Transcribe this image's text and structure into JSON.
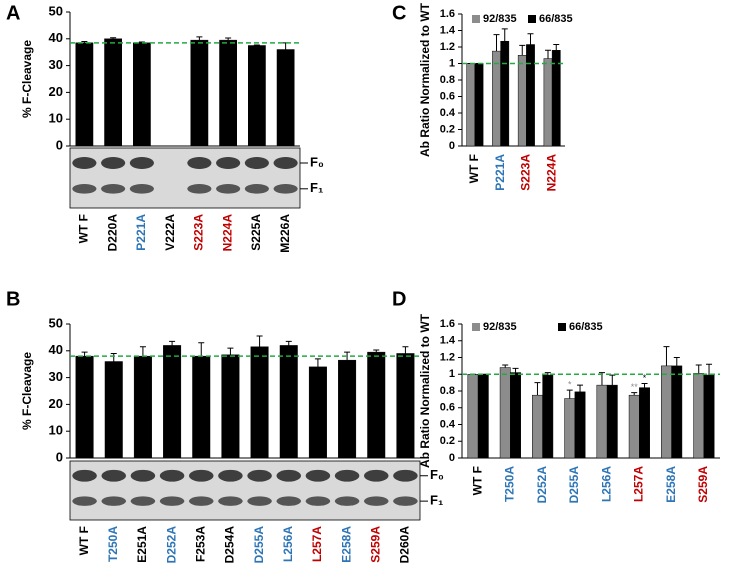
{
  "chart_data": [
    {
      "panel": "A",
      "type": "bar",
      "ylabel": "% F-Cleavage",
      "categories": [
        "WT F",
        "D220A",
        "P221A",
        "V222A",
        "S223A",
        "N224A",
        "S225A",
        "M226A"
      ],
      "category_colors": [
        "#000000",
        "#000000",
        "#2e75b6",
        "#000000",
        "#c00000",
        "#c00000",
        "#000000",
        "#000000"
      ],
      "values": [
        38.5,
        40,
        38.5,
        null,
        39.5,
        39.5,
        37.5,
        36
      ],
      "errors": [
        0.5,
        0.4,
        0.3,
        null,
        1.2,
        0.8,
        0.2,
        2.5
      ],
      "color": "#000000",
      "ylim": [
        0,
        50
      ],
      "yticks": [
        0,
        10,
        20,
        30,
        40,
        50
      ],
      "reference_line": 38.5,
      "reference_color": "#22aa44",
      "blot_labels": [
        "F₀",
        "F₁"
      ]
    },
    {
      "panel": "B",
      "type": "bar",
      "ylabel": "% F-Cleavage",
      "categories": [
        "WT F",
        "T250A",
        "E251A",
        "D252A",
        "F253A",
        "D254A",
        "D255A",
        "L256A",
        "L257A",
        "E258A",
        "S259A",
        "D260A"
      ],
      "category_colors": [
        "#000000",
        "#2e75b6",
        "#000000",
        "#2e75b6",
        "#000000",
        "#000000",
        "#2e75b6",
        "#2e75b6",
        "#c00000",
        "#2e75b6",
        "#c00000",
        "#000000"
      ],
      "values": [
        38,
        36,
        38,
        42,
        38,
        38.5,
        41.5,
        42,
        34,
        36.5,
        39.5,
        39
      ],
      "errors": [
        1.5,
        3,
        3.5,
        1.5,
        5,
        2.5,
        4,
        1.5,
        3,
        3,
        0.8,
        2.5
      ],
      "color": "#000000",
      "ylim": [
        0,
        50
      ],
      "yticks": [
        0,
        10,
        20,
        30,
        40,
        50
      ],
      "reference_line": 38,
      "reference_color": "#22aa44",
      "blot_labels": [
        "F₀",
        "F₁"
      ]
    },
    {
      "panel": "C",
      "type": "bar",
      "ylabel": "Ab Ratio Normalized to WT",
      "categories": [
        "WT F",
        "P221A",
        "S223A",
        "N224A"
      ],
      "category_colors": [
        "#000000",
        "#2e75b6",
        "#c00000",
        "#c00000"
      ],
      "series": [
        {
          "name": "92/835",
          "color": "#8c8c8c",
          "values": [
            1,
            1.15,
            1.1,
            1.06
          ],
          "errors": [
            0,
            0.2,
            0.12,
            0.1
          ]
        },
        {
          "name": "66/835",
          "color": "#000000",
          "values": [
            1,
            1.27,
            1.23,
            1.16
          ],
          "errors": [
            0,
            0.15,
            0.13,
            0.07
          ]
        }
      ],
      "ylim": [
        0,
        1.6
      ],
      "yticks": [
        0,
        0.2,
        0.4,
        0.6,
        0.8,
        1,
        1.2,
        1.4,
        1.6
      ],
      "reference_line": 1,
      "reference_color": "#22aa44"
    },
    {
      "panel": "D",
      "type": "bar",
      "ylabel": "Ab Ratio Normalized to WT",
      "categories": [
        "WT F",
        "T250A",
        "D252A",
        "D255A",
        "L256A",
        "L257A",
        "E258A",
        "S259A"
      ],
      "category_colors": [
        "#000000",
        "#2e75b6",
        "#2e75b6",
        "#2e75b6",
        "#2e75b6",
        "#c00000",
        "#2e75b6",
        "#c00000"
      ],
      "series": [
        {
          "name": "92/835",
          "color": "#8c8c8c",
          "values": [
            1,
            1.08,
            0.75,
            0.71,
            0.87,
            0.75,
            1.1,
            1.01
          ],
          "errors": [
            0,
            0.03,
            0.15,
            0.1,
            0.15,
            0.03,
            0.23,
            0.1
          ],
          "stars": [
            null,
            null,
            null,
            "*",
            null,
            "**",
            null,
            null
          ]
        },
        {
          "name": "66/835",
          "color": "#000000",
          "values": [
            1,
            1.02,
            0.99,
            0.79,
            0.87,
            0.84,
            1.1,
            0.99
          ],
          "errors": [
            0,
            0.05,
            0.03,
            0.08,
            0.12,
            0.05,
            0.1,
            0.13
          ],
          "stars": [
            null,
            null,
            null,
            null,
            null,
            "*",
            null,
            null
          ]
        }
      ],
      "ylim": [
        0,
        1.6
      ],
      "yticks": [
        0,
        0.2,
        0.4,
        0.6,
        0.8,
        1,
        1.2,
        1.4,
        1.6
      ],
      "reference_line": 1,
      "reference_color": "#22aa44"
    }
  ]
}
